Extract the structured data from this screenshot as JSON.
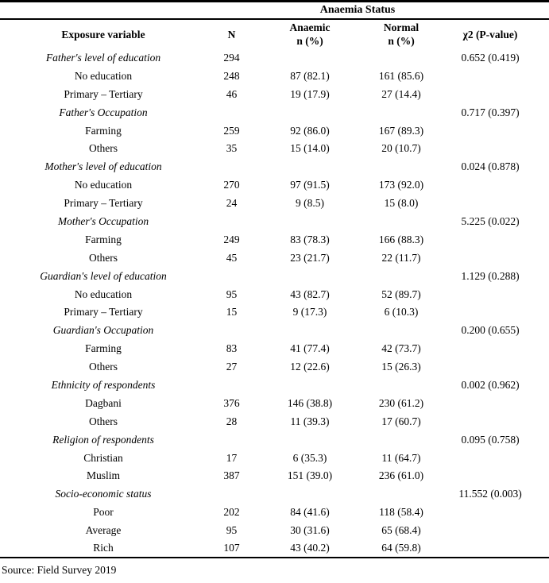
{
  "page": {
    "background": "#ffffff",
    "text_color": "#000000",
    "rule_color": "#000000"
  },
  "table": {
    "spanner_title": "Anaemia Status",
    "columns": [
      {
        "label": "Exposure variable",
        "sub": ""
      },
      {
        "label": "N",
        "sub": ""
      },
      {
        "label": "Anaemic",
        "sub": "n (%)"
      },
      {
        "label": "Normal",
        "sub": "n (%)"
      },
      {
        "label": "χ2 (P-value)",
        "sub": ""
      }
    ],
    "rows": [
      {
        "italic": true,
        "cells": [
          "Father's level of education",
          "294",
          "",
          "",
          "0.652 (0.419)"
        ]
      },
      {
        "italic": false,
        "cells": [
          "No education",
          "248",
          "87 (82.1)",
          "161 (85.6)",
          ""
        ]
      },
      {
        "italic": false,
        "cells": [
          "Primary – Tertiary",
          "46",
          "19 (17.9)",
          "27 (14.4)",
          ""
        ]
      },
      {
        "italic": true,
        "cells": [
          "Father's Occupation",
          "",
          "",
          "",
          "0.717 (0.397)"
        ]
      },
      {
        "italic": false,
        "cells": [
          "Farming",
          "259",
          "92 (86.0)",
          "167 (89.3)",
          ""
        ]
      },
      {
        "italic": false,
        "cells": [
          "Others",
          "35",
          "15 (14.0)",
          "20 (10.7)",
          ""
        ]
      },
      {
        "italic": true,
        "cells": [
          "Mother's level of education",
          "",
          "",
          "",
          "0.024 (0.878)"
        ]
      },
      {
        "italic": false,
        "cells": [
          "No education",
          "270",
          "97 (91.5)",
          "173 (92.0)",
          ""
        ]
      },
      {
        "italic": false,
        "cells": [
          "Primary – Tertiary",
          "24",
          "9 (8.5)",
          "15 (8.0)",
          ""
        ]
      },
      {
        "italic": true,
        "cells": [
          "Mother's Occupation",
          "",
          "",
          "",
          "5.225 (0.022)"
        ]
      },
      {
        "italic": false,
        "cells": [
          "Farming",
          "249",
          "83 (78.3)",
          "166 (88.3)",
          ""
        ]
      },
      {
        "italic": false,
        "cells": [
          "Others",
          "45",
          "23 (21.7)",
          "22 (11.7)",
          ""
        ]
      },
      {
        "italic": true,
        "cells": [
          "Guardian's level of education",
          "",
          "",
          "",
          "1.129 (0.288)"
        ]
      },
      {
        "italic": false,
        "cells": [
          "No education",
          "95",
          "43 (82.7)",
          "52 (89.7)",
          ""
        ]
      },
      {
        "italic": false,
        "cells": [
          "Primary – Tertiary",
          "15",
          "9 (17.3)",
          "6 (10.3)",
          ""
        ]
      },
      {
        "italic": true,
        "cells": [
          "Guardian's Occupation",
          "",
          "",
          "",
          "0.200 (0.655)"
        ]
      },
      {
        "italic": false,
        "cells": [
          "Farming",
          "83",
          "41 (77.4)",
          "42 (73.7)",
          ""
        ]
      },
      {
        "italic": false,
        "cells": [
          "Others",
          "27",
          "12 (22.6)",
          "15 (26.3)",
          ""
        ]
      },
      {
        "italic": true,
        "cells": [
          "Ethnicity of respondents",
          "",
          "",
          "",
          "0.002 (0.962)"
        ]
      },
      {
        "italic": false,
        "cells": [
          "Dagbani",
          "376",
          "146 (38.8)",
          "230 (61.2)",
          ""
        ]
      },
      {
        "italic": false,
        "cells": [
          "Others",
          "28",
          "11 (39.3)",
          "17 (60.7)",
          ""
        ]
      },
      {
        "italic": true,
        "cells": [
          "Religion of respondents",
          "",
          "",
          "",
          "0.095 (0.758)"
        ]
      },
      {
        "italic": false,
        "cells": [
          "Christian",
          "17",
          "6 (35.3)",
          "11 (64.7)",
          ""
        ]
      },
      {
        "italic": false,
        "cells": [
          "Muslim",
          "387",
          "151 (39.0)",
          "236 (61.0)",
          ""
        ]
      },
      {
        "italic": true,
        "cells": [
          "Socio-economic status",
          "",
          "",
          "",
          "11.552 (0.003)"
        ]
      },
      {
        "italic": false,
        "cells": [
          "Poor",
          "202",
          "84 (41.6)",
          "118 (58.4)",
          ""
        ]
      },
      {
        "italic": false,
        "cells": [
          "Average",
          "95",
          "30 (31.6)",
          "65 (68.4)",
          ""
        ]
      },
      {
        "italic": false,
        "cells": [
          "Rich",
          "107",
          "43 (40.2)",
          "64 (59.8)",
          ""
        ]
      }
    ]
  },
  "footer": {
    "source_note": "Source: Field Survey 2019"
  }
}
